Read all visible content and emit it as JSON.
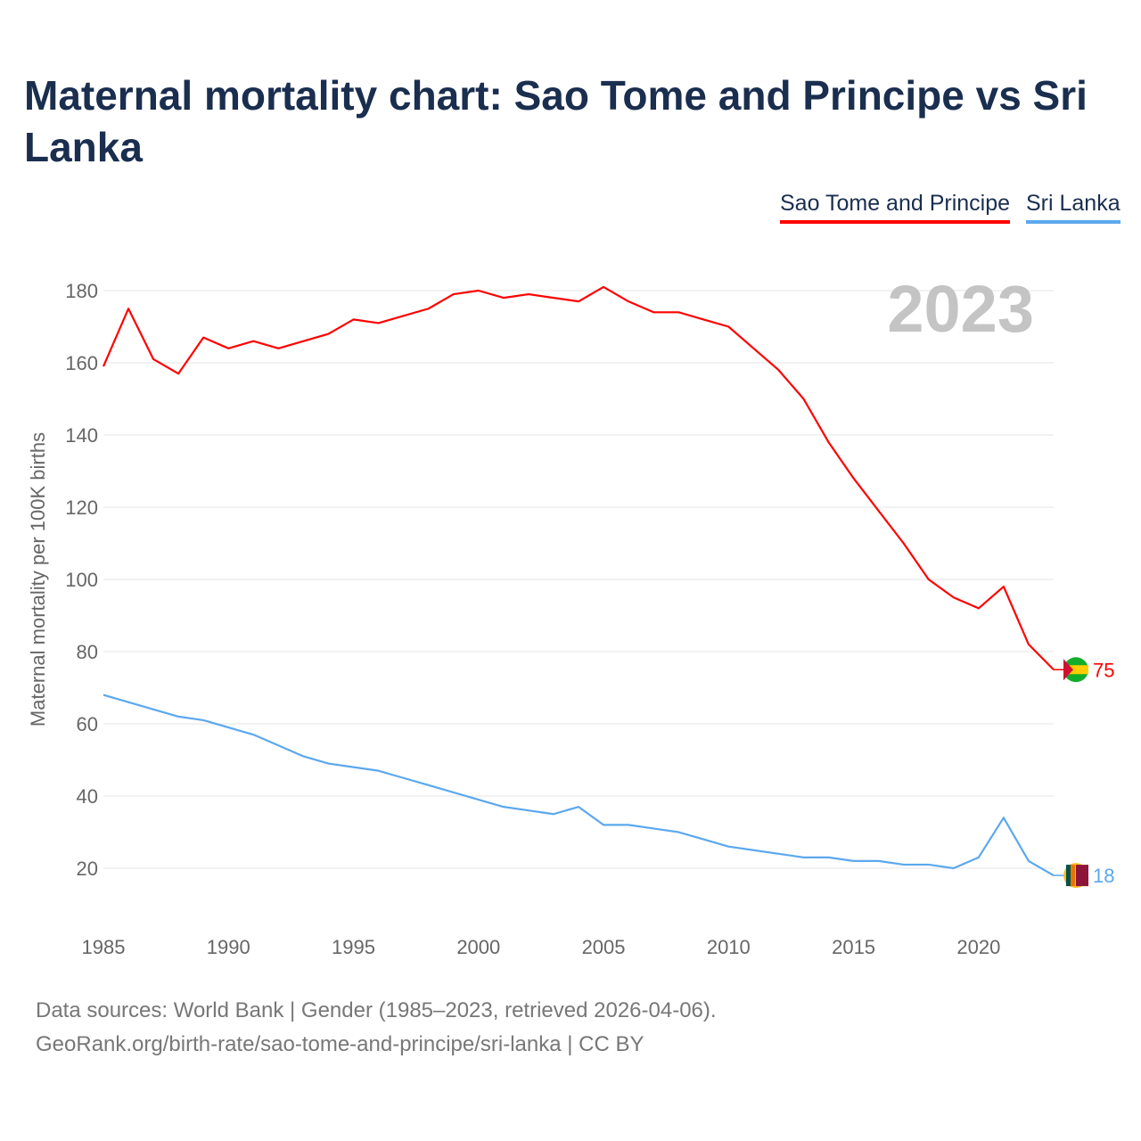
{
  "title": "Maternal mortality chart: Sao Tome and Principe vs Sri Lanka",
  "footer": {
    "sources": "Data sources: World Bank | Gender (1985–2023, retrieved 2026-04-06).",
    "link": "GeoRank.org/birth-rate/sao-tome-and-principe/sri-lanka | CC BY"
  },
  "chart_data": {
    "type": "line",
    "title": "Maternal mortality chart: Sao Tome and Principe vs Sri Lanka",
    "ylabel": "Maternal mortality per 100K births",
    "xlabel": "",
    "year_label": "2023",
    "xlim": [
      1985,
      2023
    ],
    "ylim": [
      10,
      190
    ],
    "xticks": [
      1985,
      1990,
      1995,
      2000,
      2005,
      2010,
      2015,
      2020
    ],
    "yticks": [
      20,
      40,
      60,
      80,
      100,
      120,
      140,
      160,
      180
    ],
    "grid": true,
    "legend_placement": "top-right",
    "x": [
      1985,
      1986,
      1987,
      1988,
      1989,
      1990,
      1991,
      1992,
      1993,
      1994,
      1995,
      1996,
      1997,
      1998,
      1999,
      2000,
      2001,
      2002,
      2003,
      2004,
      2005,
      2006,
      2007,
      2008,
      2009,
      2010,
      2011,
      2012,
      2013,
      2014,
      2015,
      2016,
      2017,
      2018,
      2019,
      2020,
      2021,
      2022,
      2023
    ],
    "series": [
      {
        "name": "Sao Tome and Principe",
        "color": "#ff0000",
        "end_label": "75",
        "values": [
          159,
          175,
          161,
          157,
          167,
          164,
          166,
          164,
          166,
          168,
          172,
          171,
          173,
          175,
          179,
          180,
          178,
          179,
          178,
          177,
          181,
          177,
          174,
          174,
          172,
          170,
          164,
          158,
          150,
          138,
          128,
          119,
          110,
          100,
          95,
          92,
          98,
          82,
          75
        ]
      },
      {
        "name": "Sri Lanka",
        "color": "#5ba8ee",
        "end_label": "18",
        "values": [
          68,
          66,
          64,
          62,
          61,
          59,
          57,
          54,
          51,
          49,
          48,
          47,
          45,
          43,
          41,
          39,
          37,
          36,
          35,
          37,
          32,
          32,
          31,
          30,
          28,
          26,
          25,
          24,
          23,
          23,
          22,
          22,
          21,
          21,
          20,
          23,
          34,
          22,
          18
        ]
      }
    ]
  }
}
